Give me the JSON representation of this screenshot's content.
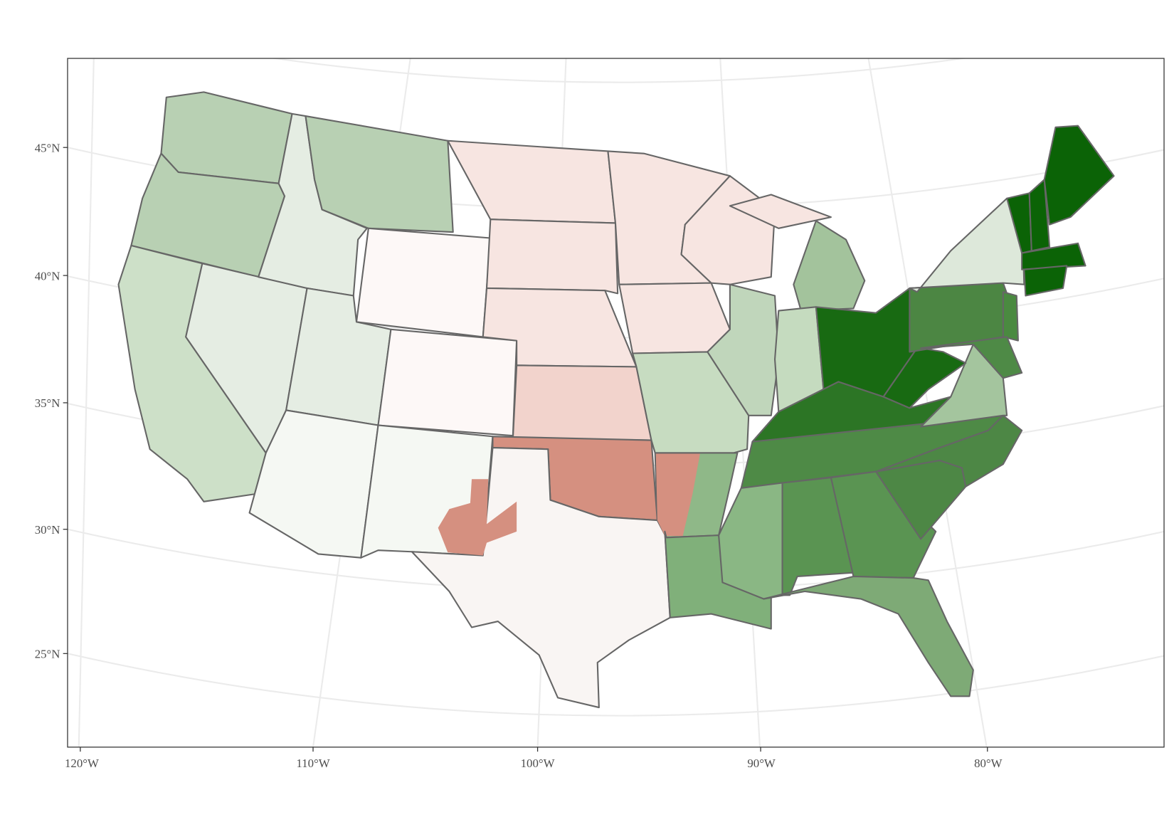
{
  "axes": {
    "lat_labels": [
      "45°N",
      "40°N",
      "35°N",
      "30°N",
      "25°N"
    ],
    "lon_labels": [
      "120°W",
      "110°W",
      "100°W",
      "90°W",
      "80°W"
    ]
  }
}
